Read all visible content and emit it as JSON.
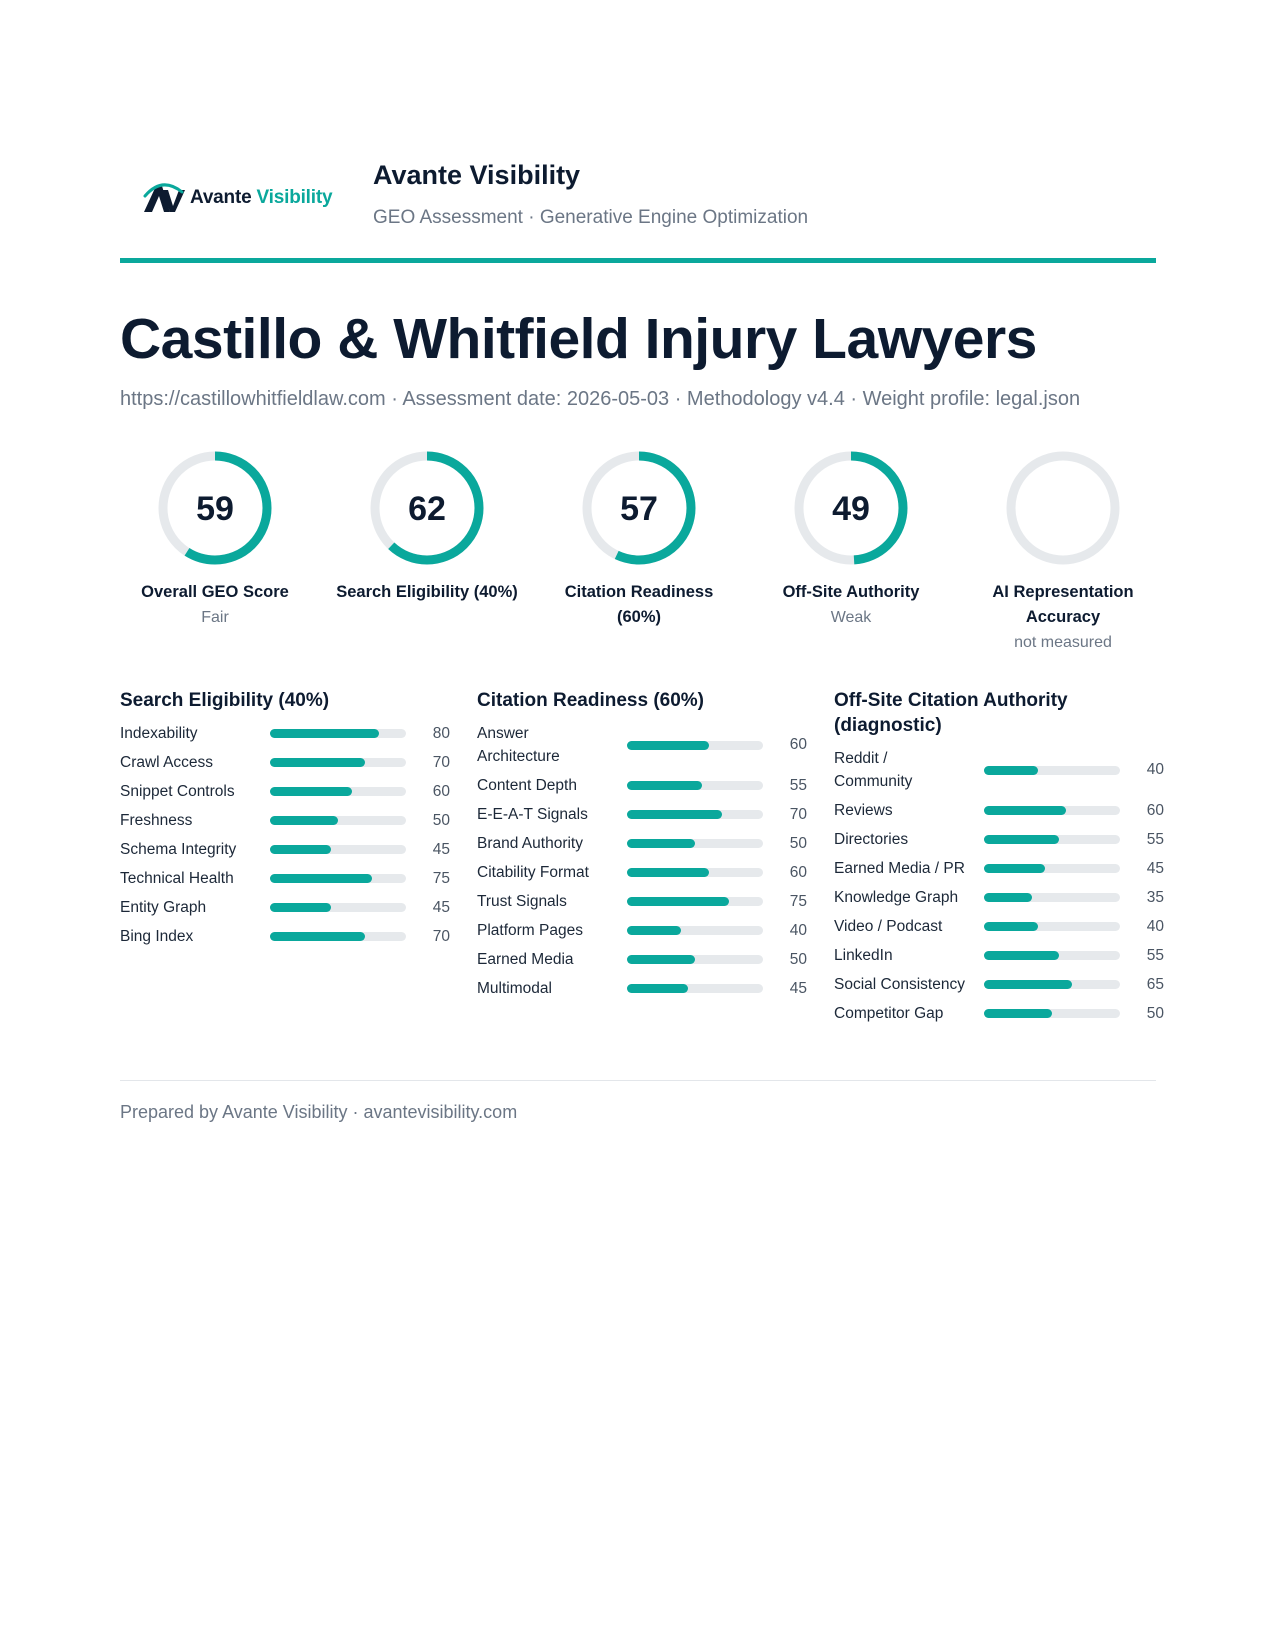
{
  "header": {
    "logo_word1": "Avante",
    "logo_word2": "Visibility",
    "brand_name": "Avante Visibility",
    "brand_sub": "GEO Assessment · Generative Engine Optimization",
    "accent_color": "#0aa89c"
  },
  "report": {
    "title": "Castillo & Whitfield Injury Lawyers",
    "meta": "https://castillowhitfieldlaw.com · Assessment date: 2026-05-03 · Methodology v4.4 · Weight profile: legal.json"
  },
  "gauges": [
    {
      "value": "59",
      "score": 59,
      "label": "Overall GEO Score",
      "sub": "Fair"
    },
    {
      "value": "62",
      "score": 62,
      "label": "Search Eligibility (40%)",
      "sub": ""
    },
    {
      "value": "57",
      "score": 57,
      "label": "Citation Readiness (60%)",
      "sub": ""
    },
    {
      "value": "49",
      "score": 49,
      "label": "Off-Site Authority",
      "sub": "Weak"
    },
    {
      "value": "",
      "score": 0,
      "label": "AI Representation Accuracy",
      "sub": "not measured"
    }
  ],
  "sections": [
    {
      "title": "Search Eligibility (40%)",
      "metrics": [
        {
          "name": "Indexability",
          "value": 80
        },
        {
          "name": "Crawl Access",
          "value": 70
        },
        {
          "name": "Snippet Controls",
          "value": 60
        },
        {
          "name": "Freshness",
          "value": 50
        },
        {
          "name": "Schema Integrity",
          "value": 45
        },
        {
          "name": "Technical Health",
          "value": 75
        },
        {
          "name": "Entity Graph",
          "value": 45
        },
        {
          "name": "Bing Index",
          "value": 70
        }
      ]
    },
    {
      "title": "Citation Readiness (60%)",
      "metrics": [
        {
          "name": "Answer Architecture",
          "value": 60,
          "two_line": true
        },
        {
          "name": "Content Depth",
          "value": 55
        },
        {
          "name": "E-E-A-T Signals",
          "value": 70
        },
        {
          "name": "Brand Authority",
          "value": 50
        },
        {
          "name": "Citability Format",
          "value": 60
        },
        {
          "name": "Trust Signals",
          "value": 75
        },
        {
          "name": "Platform Pages",
          "value": 40
        },
        {
          "name": "Earned Media",
          "value": 50
        },
        {
          "name": "Multimodal",
          "value": 45
        }
      ]
    },
    {
      "title": "Off-Site Citation Authority (diagnostic)",
      "metrics": [
        {
          "name": "Reddit / Community",
          "value": 40,
          "two_line": true
        },
        {
          "name": "Reviews",
          "value": 60
        },
        {
          "name": "Directories",
          "value": 55
        },
        {
          "name": "Earned Media / PR",
          "value": 45
        },
        {
          "name": "Knowledge Graph",
          "value": 35
        },
        {
          "name": "Video / Podcast",
          "value": 40
        },
        {
          "name": "LinkedIn",
          "value": 55
        },
        {
          "name": "Social Consistency",
          "value": 65
        },
        {
          "name": "Competitor Gap",
          "value": 50
        }
      ]
    }
  ],
  "footer": {
    "text": "Prepared by Avante Visibility · avantevisibility.com"
  }
}
